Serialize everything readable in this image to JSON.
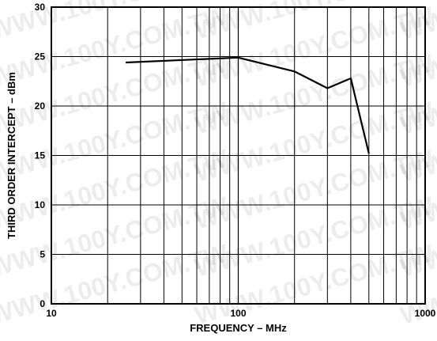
{
  "chart_data": {
    "type": "line",
    "title": "",
    "xlabel": "FREQUENCY – MHz",
    "ylabel": "THIRD ORDER INTERCEPT – dBm",
    "x_scale": "log",
    "xlim": [
      10,
      1000
    ],
    "ylim": [
      0,
      30
    ],
    "x_ticks": [
      10,
      100,
      1000
    ],
    "x_tick_labels": [
      "10",
      "100",
      "1000"
    ],
    "y_ticks": [
      0,
      5,
      10,
      15,
      20,
      25,
      30
    ],
    "y_tick_labels": [
      "0",
      "5",
      "10",
      "15",
      "20",
      "25",
      "30"
    ],
    "grid": true,
    "legend": "none",
    "series": [
      {
        "x": [
          25,
          100,
          200,
          300,
          400,
          500
        ],
        "y": [
          24.4,
          24.9,
          23.5,
          21.8,
          22.8,
          15.2
        ]
      }
    ]
  },
  "watermark": {
    "text": "WWW.100Y.COM.TW"
  }
}
